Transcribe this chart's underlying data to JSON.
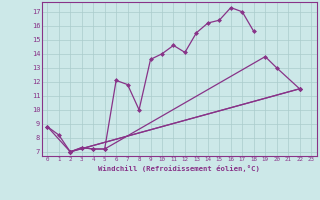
{
  "bg_color": "#cce8e8",
  "grid_color": "#aacccc",
  "line_color": "#883388",
  "xlabel": "Windchill (Refroidissement éolien,°C)",
  "xlim": [
    -0.5,
    23.5
  ],
  "ylim": [
    6.7,
    17.7
  ],
  "xticks": [
    0,
    1,
    2,
    3,
    4,
    5,
    6,
    7,
    8,
    9,
    10,
    11,
    12,
    13,
    14,
    15,
    16,
    17,
    18,
    19,
    20,
    21,
    22,
    23
  ],
  "yticks": [
    7,
    8,
    9,
    10,
    11,
    12,
    13,
    14,
    15,
    16,
    17
  ],
  "curve1_x": [
    0,
    1,
    2,
    3,
    4,
    5,
    6,
    7,
    8,
    9,
    10,
    11,
    12,
    13,
    14,
    15,
    16,
    17,
    18
  ],
  "curve1_y": [
    8.8,
    8.2,
    7.0,
    7.3,
    7.2,
    7.2,
    12.1,
    11.8,
    10.0,
    13.6,
    14.0,
    14.6,
    14.1,
    15.5,
    16.2,
    16.4,
    17.3,
    17.0,
    15.6
  ],
  "curve2_x": [
    2,
    3,
    4,
    5,
    19,
    20,
    22
  ],
  "curve2_y": [
    7.0,
    7.3,
    7.2,
    7.2,
    13.8,
    13.0,
    11.5
  ],
  "curve3_x": [
    0,
    2,
    22
  ],
  "curve3_y": [
    8.8,
    7.0,
    11.5
  ],
  "curve4_x": [
    2,
    22
  ],
  "curve4_y": [
    7.0,
    11.5
  ]
}
